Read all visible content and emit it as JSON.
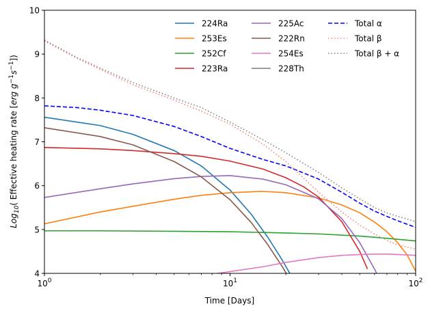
{
  "chart_data": {
    "type": "line",
    "title": "",
    "xlabel": "Time [Days]",
    "ylabel_main": "Log",
    "ylabel_sub": "10",
    "ylabel_rest": "( Effective heating rate [",
    "ylabel_unit": "erg g",
    "ylabel_exp1": "−1",
    "ylabel_s": "s",
    "ylabel_exp2": "−1",
    "ylabel_close": "])",
    "xscale": "log",
    "xlim": [
      1,
      100
    ],
    "ylim": [
      4,
      10
    ],
    "x_ticks": [
      {
        "base": "10",
        "exp": "0",
        "value": 1
      },
      {
        "base": "10",
        "exp": "1",
        "value": 10
      },
      {
        "base": "10",
        "exp": "2",
        "value": 100
      }
    ],
    "y_ticks": [
      {
        "label": "4",
        "value": 4
      },
      {
        "label": "5",
        "value": 5
      },
      {
        "label": "6",
        "value": 6
      },
      {
        "label": "7",
        "value": 7
      },
      {
        "label": "8",
        "value": 8
      },
      {
        "label": "9",
        "value": 9
      },
      {
        "label": "10",
        "value": 10
      }
    ],
    "legend_position": "top-right",
    "series": [
      {
        "name": "224Ra",
        "color": "#1f77b4",
        "style": "solid",
        "x": [
          1,
          2,
          3,
          5,
          7,
          10,
          13,
          16,
          19,
          22,
          25
        ],
        "y": [
          7.56,
          7.37,
          7.17,
          6.8,
          6.45,
          5.9,
          5.35,
          4.82,
          4.32,
          3.85,
          3.45
        ]
      },
      {
        "name": "253Es",
        "color": "#ff7f0e",
        "style": "solid",
        "x": [
          1,
          2,
          3,
          5,
          7,
          10,
          15,
          20,
          30,
          40,
          50,
          60,
          70,
          80,
          90,
          100
        ],
        "y": [
          5.13,
          5.4,
          5.53,
          5.69,
          5.78,
          5.84,
          5.87,
          5.84,
          5.72,
          5.56,
          5.38,
          5.17,
          4.95,
          4.7,
          4.42,
          4.05
        ]
      },
      {
        "name": "252Cf",
        "color": "#2ca02c",
        "style": "solid",
        "x": [
          1,
          2,
          5,
          10,
          20,
          30,
          50,
          70,
          100
        ],
        "y": [
          4.97,
          4.97,
          4.96,
          4.95,
          4.92,
          4.9,
          4.85,
          4.8,
          4.74
        ]
      },
      {
        "name": "223Ra",
        "color": "#d62728",
        "style": "solid",
        "x": [
          1,
          2,
          3,
          5,
          7,
          10,
          15,
          20,
          25,
          30,
          40,
          50,
          55
        ],
        "y": [
          6.87,
          6.84,
          6.8,
          6.73,
          6.67,
          6.56,
          6.38,
          6.18,
          5.97,
          5.74,
          5.18,
          4.5,
          4.1
        ]
      },
      {
        "name": "225Ac",
        "color": "#9467bd",
        "style": "solid",
        "x": [
          1,
          2,
          3,
          5,
          7,
          10,
          15,
          20,
          30,
          40,
          50,
          60,
          65
        ],
        "y": [
          5.73,
          5.93,
          6.04,
          6.16,
          6.21,
          6.23,
          6.15,
          6.02,
          5.7,
          5.25,
          4.7,
          4.1,
          3.8
        ]
      },
      {
        "name": "222Rn",
        "color": "#8c564b",
        "style": "solid",
        "x": [
          1,
          2,
          3,
          5,
          7,
          10,
          13,
          16,
          19,
          22,
          25
        ],
        "y": [
          7.32,
          7.12,
          6.93,
          6.55,
          6.2,
          5.68,
          5.16,
          4.65,
          4.17,
          3.72,
          3.3
        ]
      },
      {
        "name": "254Es",
        "color": "#e377c2",
        "style": "solid",
        "x": [
          8,
          10,
          15,
          20,
          30,
          40,
          50,
          60,
          70,
          80,
          90,
          100
        ],
        "y": [
          3.98,
          4.04,
          4.15,
          4.25,
          4.36,
          4.41,
          4.43,
          4.44,
          4.44,
          4.43,
          4.42,
          4.41
        ]
      },
      {
        "name": "228Th",
        "color": "#7f7f7f",
        "style": "solid",
        "x": [],
        "y": []
      },
      {
        "name": "Total α",
        "color": "#0000ff",
        "style": "dashed",
        "x": [
          1,
          1.5,
          2,
          3,
          5,
          7,
          10,
          15,
          20,
          30,
          40,
          50,
          60,
          70,
          80,
          90,
          100
        ],
        "y": [
          7.82,
          7.78,
          7.72,
          7.6,
          7.35,
          7.12,
          6.85,
          6.6,
          6.45,
          6.15,
          5.85,
          5.6,
          5.42,
          5.3,
          5.2,
          5.12,
          5.05
        ]
      },
      {
        "name": "Total β",
        "color": "#fa8072",
        "style": "dotted",
        "x": [
          1,
          1.5,
          2,
          3,
          5,
          7,
          10,
          15,
          20,
          30,
          40,
          50,
          60,
          70,
          80,
          90,
          100
        ],
        "y": [
          9.3,
          8.9,
          8.65,
          8.3,
          7.95,
          7.7,
          7.4,
          6.95,
          6.55,
          5.85,
          5.4,
          5.1,
          4.9,
          4.75,
          4.65,
          4.6,
          4.55
        ]
      },
      {
        "name": "Total β + α",
        "color": "#808080",
        "style": "dotted",
        "x": [
          1,
          1.5,
          2,
          3,
          5,
          7,
          10,
          15,
          20,
          30,
          40,
          50,
          60,
          70,
          80,
          90,
          100
        ],
        "y": [
          9.32,
          8.92,
          8.68,
          8.35,
          8.0,
          7.78,
          7.45,
          7.05,
          6.75,
          6.3,
          5.95,
          5.7,
          5.5,
          5.38,
          5.3,
          5.24,
          5.18
        ]
      }
    ]
  }
}
